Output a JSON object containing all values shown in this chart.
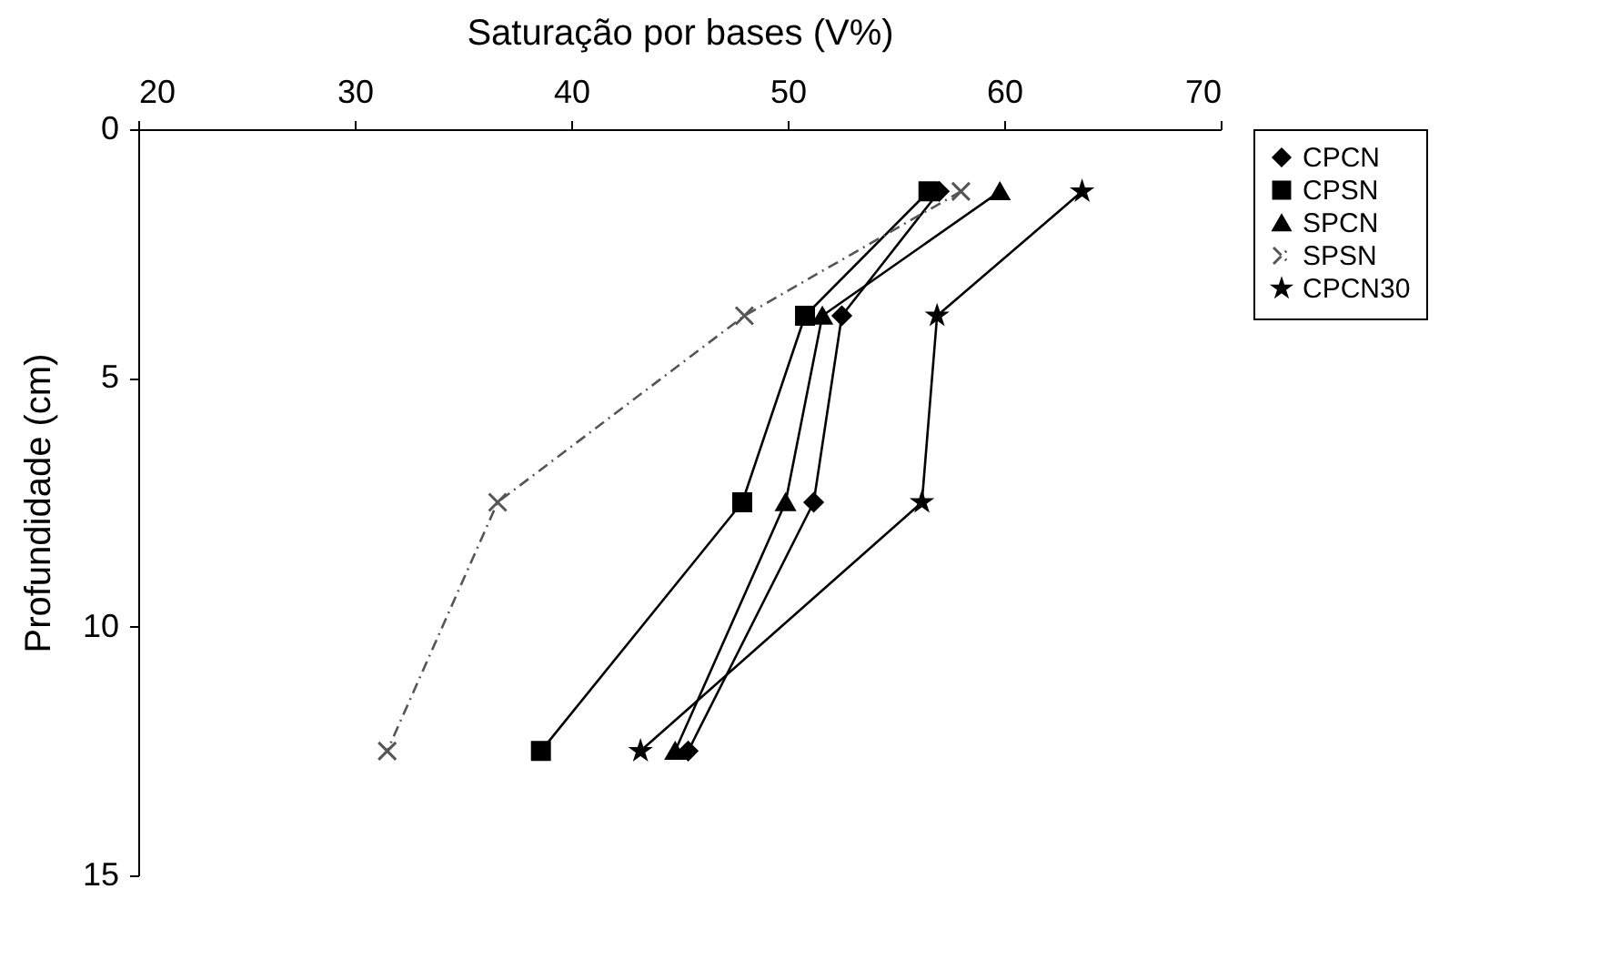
{
  "chart_data": {
    "type": "line",
    "xlabel": "Saturação por bases (V%)",
    "ylabel": "Profundidade (cm)",
    "xlim": [
      20,
      70
    ],
    "xticks": [
      20,
      30,
      40,
      50,
      60,
      70
    ],
    "ylim": [
      15,
      0
    ],
    "yticks": [
      0,
      5,
      10,
      15
    ],
    "grid": false,
    "legend": "right",
    "series": [
      {
        "name": "CPCN",
        "color": "#000000",
        "marker": "diamond",
        "line_style": "solid",
        "x": [
          57.0,
          52.5,
          51.2,
          45.4
        ],
        "values": [
          1.25,
          3.75,
          7.5,
          12.5
        ]
      },
      {
        "name": "CPSN",
        "color": "#000000",
        "marker": "square",
        "line_style": "solid",
        "x": [
          56.5,
          50.8,
          47.9,
          38.6
        ],
        "values": [
          1.25,
          3.75,
          7.5,
          12.5
        ]
      },
      {
        "name": "SPCN",
        "color": "#000000",
        "marker": "triangle",
        "line_style": "solid",
        "x": [
          59.8,
          51.6,
          49.9,
          44.8
        ],
        "values": [
          1.25,
          3.75,
          7.5,
          12.5
        ]
      },
      {
        "name": "SPSN",
        "color": "#555555",
        "marker": "cross",
        "line_style": "dashed",
        "x": [
          58.0,
          48.0,
          36.6,
          31.5
        ],
        "values": [
          1.25,
          3.75,
          7.5,
          12.5
        ]
      },
      {
        "name": "CPCN30",
        "color": "#000000",
        "marker": "star",
        "line_style": "solid",
        "x": [
          63.6,
          56.9,
          56.2,
          43.2
        ],
        "values": [
          1.25,
          3.75,
          7.5,
          12.5
        ]
      }
    ]
  }
}
